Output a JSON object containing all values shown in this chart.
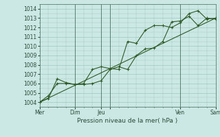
{
  "xlabel": "Pression niveau de la mer( hPa )",
  "bg_color": "#cce8e4",
  "grid_color": "#9ec8c2",
  "line_color": "#2d5a27",
  "vline_color": "#5a8070",
  "line1_x": [
    0,
    0.5,
    1,
    1.5,
    2,
    2.5,
    3,
    3.5,
    4,
    4.5,
    5,
    5.5,
    6,
    6.5,
    7,
    7.5,
    8,
    8.5,
    9,
    9.5,
    10
  ],
  "line1_y": [
    1004.0,
    1004.4,
    1006.5,
    1006.1,
    1005.9,
    1005.9,
    1006.0,
    1006.3,
    1007.5,
    1007.8,
    1007.5,
    1009.0,
    1009.7,
    1009.8,
    1010.5,
    1012.6,
    1012.7,
    1013.2,
    1012.2,
    1013.0,
    1012.9
  ],
  "line2_x": [
    0,
    0.5,
    1,
    1.5,
    2,
    2.5,
    3,
    3.5,
    4,
    4.5,
    5,
    5.5,
    6,
    6.5,
    7,
    7.5,
    8,
    8.5,
    9,
    9.5,
    10
  ],
  "line2_y": [
    1004.0,
    1004.7,
    1006.0,
    1006.0,
    1005.9,
    1006.0,
    1007.5,
    1007.8,
    1007.6,
    1007.5,
    1010.5,
    1010.3,
    1011.7,
    1012.2,
    1012.2,
    1012.0,
    1012.5,
    1013.5,
    1013.8,
    1012.9,
    1013.0
  ],
  "line3_x": [
    0,
    10
  ],
  "line3_y": [
    1004.0,
    1013.0
  ],
  "vline_positions": [
    2.0,
    3.5,
    4.0,
    8.0
  ],
  "xlim": [
    0,
    10
  ],
  "ylim": [
    1003.5,
    1014.5
  ],
  "yticks": [
    1004,
    1005,
    1006,
    1007,
    1008,
    1009,
    1010,
    1011,
    1012,
    1013,
    1014
  ],
  "xtick_positions": [
    0.0,
    2.0,
    3.5,
    4.0,
    8.0,
    10.0
  ],
  "xtick_labels": [
    "Mer",
    "Dim",
    "Jeu",
    "",
    "Ven",
    "Sam"
  ],
  "figsize": [
    3.2,
    2.0
  ],
  "dpi": 100
}
